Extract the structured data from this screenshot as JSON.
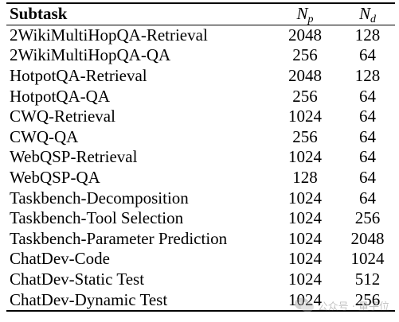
{
  "table": {
    "header": {
      "subtask": "Subtask",
      "np_base": "N",
      "np_sub": "p",
      "nd_base": "N",
      "nd_sub": "d"
    },
    "rows": [
      {
        "subtask": "2WikiMultiHopQA-Retrieval",
        "np": "2048",
        "nd": "128"
      },
      {
        "subtask": "2WikiMultiHopQA-QA",
        "np": "256",
        "nd": "64"
      },
      {
        "subtask": "HotpotQA-Retrieval",
        "np": "2048",
        "nd": "128"
      },
      {
        "subtask": "HotpotQA-QA",
        "np": "256",
        "nd": "64"
      },
      {
        "subtask": "CWQ-Retrieval",
        "np": "1024",
        "nd": "64"
      },
      {
        "subtask": "CWQ-QA",
        "np": "256",
        "nd": "64"
      },
      {
        "subtask": "WebQSP-Retrieval",
        "np": "1024",
        "nd": "64"
      },
      {
        "subtask": "WebQSP-QA",
        "np": "128",
        "nd": "64"
      },
      {
        "subtask": "Taskbench-Decomposition",
        "np": "1024",
        "nd": "64"
      },
      {
        "subtask": "Taskbench-Tool Selection",
        "np": "1024",
        "nd": "256"
      },
      {
        "subtask": "Taskbench-Parameter Prediction",
        "np": "1024",
        "nd": "2048"
      },
      {
        "subtask": "ChatDev-Code",
        "np": "1024",
        "nd": "1024"
      },
      {
        "subtask": "ChatDev-Static Test",
        "np": "1024",
        "nd": "512"
      },
      {
        "subtask": "ChatDev-Dynamic Test",
        "np": "1024",
        "nd": "256"
      }
    ]
  },
  "watermark": {
    "text": "公众号 · 量子位"
  }
}
